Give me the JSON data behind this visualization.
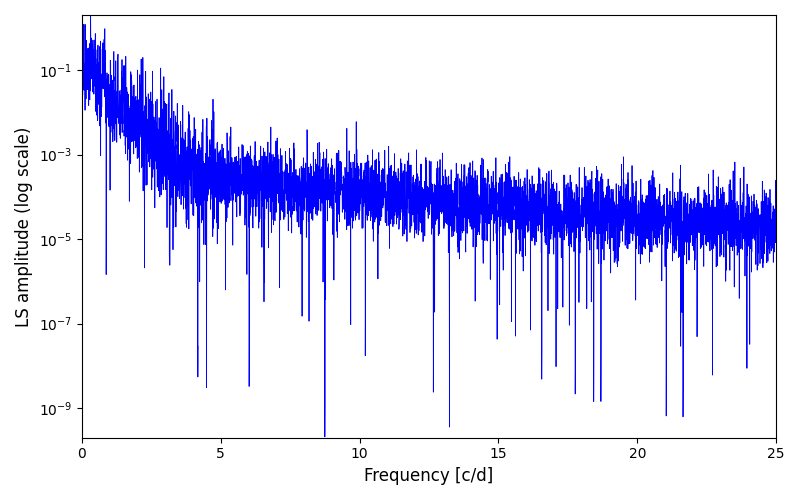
{
  "xlabel": "Frequency [c/d]",
  "ylabel": "LS amplitude (log scale)",
  "xlim": [
    0,
    25
  ],
  "ylim": [
    2e-10,
    2.0
  ],
  "line_color": "#0000ff",
  "line_width": 0.6,
  "yscale": "log",
  "figsize": [
    8.0,
    5.0
  ],
  "dpi": 100,
  "seed": 77,
  "n_points": 5000,
  "freq_max": 25.0,
  "background_color": "#ffffff"
}
